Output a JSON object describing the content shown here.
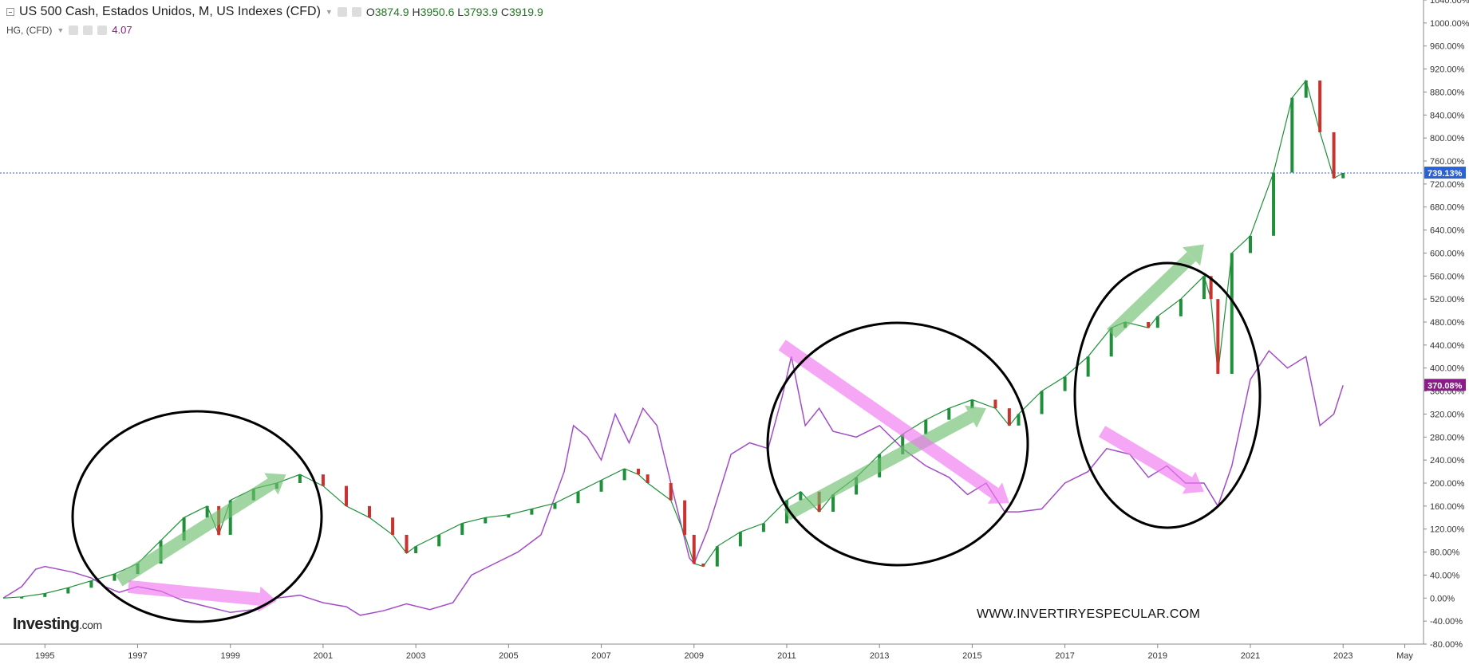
{
  "header": {
    "title": "US 500 Cash, Estados Unidos, M, US Indexes (CFD)",
    "ohlc": [
      {
        "key": "O",
        "value": "3874.9"
      },
      {
        "key": "H",
        "value": "3950.6"
      },
      {
        "key": "L",
        "value": "3793.9"
      },
      {
        "key": "C",
        "value": "3919.9"
      }
    ],
    "overlay_title": "HG, (CFD)",
    "overlay_value": "4.07"
  },
  "branding": {
    "logo_main": "Investing",
    "logo_suffix": ".com"
  },
  "watermark": "WWW.INVERTIRYESPECULAR.COM",
  "chart_data": {
    "type": "line",
    "title": "US 500 Cash, Estados Unidos, M, US Indexes (CFD)",
    "ylim": [
      -80,
      1040
    ],
    "y_ticks": [
      "-80.00%",
      "-40.00%",
      "0.00%",
      "40.00%",
      "80.00%",
      "120.00%",
      "160.00%",
      "200.00%",
      "240.00%",
      "280.00%",
      "320.00%",
      "360.00%",
      "400.00%",
      "440.00%",
      "480.00%",
      "520.00%",
      "560.00%",
      "600.00%",
      "640.00%",
      "680.00%",
      "720.00%",
      "760.00%",
      "800.00%",
      "840.00%",
      "880.00%",
      "920.00%",
      "960.00%",
      "1000.00%",
      "1040.00%"
    ],
    "x_ticks": [
      "1995",
      "1997",
      "1999",
      "2001",
      "2003",
      "2005",
      "2007",
      "2009",
      "2011",
      "2013",
      "2015",
      "2017",
      "2019",
      "2021",
      "2023",
      "May"
    ],
    "x_tick_years": [
      1995,
      1997,
      1999,
      2001,
      2003,
      2005,
      2007,
      2009,
      2011,
      2013,
      2015,
      2017,
      2019,
      2021,
      2023,
      2024.33
    ],
    "xlim": [
      1994.1,
      2024.7
    ],
    "series": [
      {
        "name": "US 500 Cash",
        "color": "#1f8f3a",
        "down_color": "#c8322f",
        "x": [
          1994.1,
          1994.5,
          1995.0,
          1995.5,
          1996.0,
          1996.5,
          1997.0,
          1997.5,
          1998.0,
          1998.5,
          1998.75,
          1999.0,
          1999.5,
          2000.0,
          2000.5,
          2001.0,
          2001.5,
          2002.0,
          2002.5,
          2002.8,
          2003.0,
          2003.5,
          2004.0,
          2004.5,
          2005.0,
          2005.5,
          2006.0,
          2006.5,
          2007.0,
          2007.5,
          2007.8,
          2008.0,
          2008.5,
          2008.8,
          2009.0,
          2009.2,
          2009.5,
          2010.0,
          2010.5,
          2011.0,
          2011.3,
          2011.7,
          2012.0,
          2012.5,
          2013.0,
          2013.5,
          2014.0,
          2014.5,
          2015.0,
          2015.5,
          2015.8,
          2016.0,
          2016.5,
          2017.0,
          2017.5,
          2018.0,
          2018.3,
          2018.8,
          2019.0,
          2019.5,
          2020.0,
          2020.15,
          2020.3,
          2020.6,
          2021.0,
          2021.5,
          2021.9,
          2022.2,
          2022.5,
          2022.8,
          2023.0
        ],
        "values": [
          0,
          2,
          8,
          18,
          30,
          42,
          60,
          100,
          140,
          160,
          110,
          170,
          190,
          200,
          215,
          195,
          160,
          140,
          110,
          78,
          90,
          110,
          130,
          140,
          145,
          155,
          165,
          185,
          205,
          225,
          215,
          200,
          170,
          110,
          60,
          55,
          90,
          115,
          130,
          170,
          185,
          150,
          180,
          210,
          250,
          285,
          310,
          330,
          345,
          330,
          300,
          320,
          360,
          385,
          420,
          470,
          480,
          470,
          490,
          520,
          560,
          520,
          390,
          600,
          630,
          740,
          870,
          900,
          810,
          730,
          739.13
        ]
      },
      {
        "name": "HG, (CFD)",
        "color": "#a24cc8",
        "x": [
          1994.1,
          1994.5,
          1994.8,
          1995.0,
          1995.3,
          1995.6,
          1996.0,
          1996.3,
          1996.6,
          1997.0,
          1997.5,
          1998.0,
          1998.5,
          1999.0,
          1999.5,
          2000.0,
          2000.5,
          2001.0,
          2001.5,
          2001.8,
          2002.3,
          2002.8,
          2003.3,
          2003.8,
          2004.2,
          2004.7,
          2005.2,
          2005.7,
          2006.2,
          2006.4,
          2006.7,
          2007.0,
          2007.3,
          2007.6,
          2007.9,
          2008.2,
          2008.5,
          2008.9,
          2009.0,
          2009.3,
          2009.8,
          2010.2,
          2010.6,
          2010.9,
          2011.1,
          2011.4,
          2011.7,
          2012.0,
          2012.5,
          2013.0,
          2013.5,
          2014.0,
          2014.5,
          2014.9,
          2015.3,
          2015.7,
          2016.0,
          2016.5,
          2017.0,
          2017.5,
          2017.9,
          2018.4,
          2018.8,
          2019.2,
          2019.6,
          2020.0,
          2020.3,
          2020.6,
          2021.0,
          2021.4,
          2021.8,
          2022.2,
          2022.5,
          2022.8,
          2023.0
        ],
        "values": [
          0,
          20,
          50,
          55,
          50,
          45,
          35,
          20,
          10,
          20,
          12,
          -5,
          -15,
          -25,
          -20,
          0,
          5,
          -8,
          -15,
          -30,
          -22,
          -10,
          -20,
          -8,
          40,
          60,
          80,
          110,
          220,
          300,
          280,
          240,
          320,
          270,
          330,
          300,
          200,
          70,
          60,
          120,
          250,
          270,
          260,
          350,
          420,
          300,
          330,
          290,
          280,
          300,
          260,
          230,
          210,
          180,
          200,
          150,
          150,
          155,
          200,
          220,
          260,
          250,
          210,
          230,
          200,
          200,
          160,
          230,
          380,
          430,
          400,
          420,
          300,
          320,
          370.08
        ]
      }
    ],
    "price_label": "739.13%",
    "overlay_label": "370.08%",
    "price_label_color": "#2a62d6",
    "overlay_label_color": "#8b1a8b",
    "grid": false
  }
}
